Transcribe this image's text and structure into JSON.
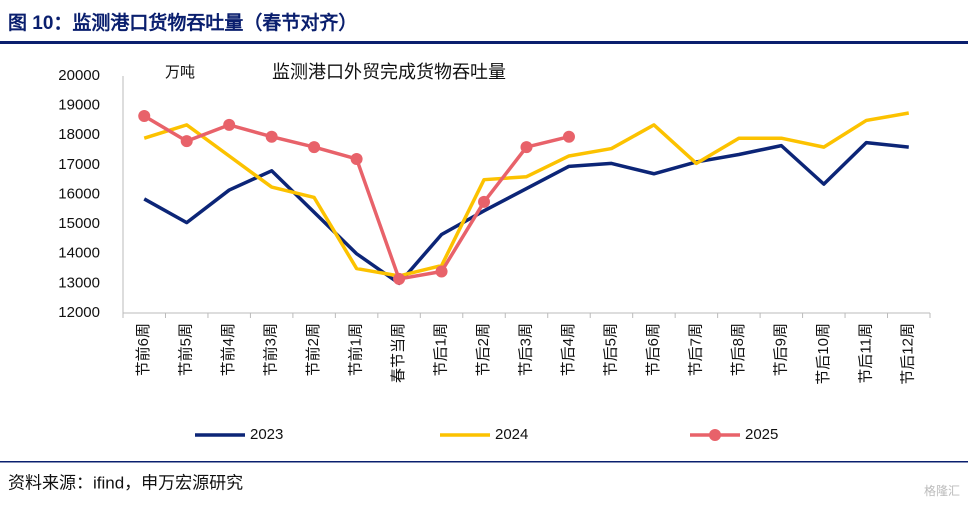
{
  "header": {
    "title": "图 10：监测港口货物吞吐量（春节对齐）"
  },
  "chart_data": {
    "type": "line",
    "title": "监测港口外贸完成货物吞吐量",
    "y_unit": "万吨",
    "categories": [
      "节前6周",
      "节前5周",
      "节前4周",
      "节前3周",
      "节前2周",
      "节前1周",
      "春节当周",
      "节后1周",
      "节后2周",
      "节后3周",
      "节后4周",
      "节后5周",
      "节后6周",
      "节后7周",
      "节后8周",
      "节后9周",
      "节后10周",
      "节后11周",
      "节后12周"
    ],
    "series": [
      {
        "name": "2023",
        "color": "#0c2577",
        "markers": false,
        "values": [
          15850,
          15050,
          16150,
          16800,
          15400,
          14000,
          13000,
          14650,
          15450,
          16200,
          16950,
          17050,
          16700,
          17100,
          17350,
          17650,
          16350,
          17750,
          17600
        ]
      },
      {
        "name": "2024",
        "color": "#fcc200",
        "markers": false,
        "values": [
          17900,
          18350,
          17300,
          16250,
          15900,
          13500,
          13250,
          13600,
          16500,
          16600,
          17300,
          17550,
          18350,
          17050,
          17900,
          17900,
          17600,
          18500,
          18750
        ]
      },
      {
        "name": "2025",
        "color": "#e8626a",
        "markers": true,
        "values": [
          18650,
          17800,
          18350,
          17950,
          17600,
          17200,
          13150,
          13400,
          15750,
          17600,
          17950,
          null,
          null,
          null,
          null,
          null,
          null,
          null,
          null
        ]
      }
    ],
    "ylim": [
      12000,
      20000
    ],
    "yticks": [
      12000,
      13000,
      14000,
      15000,
      16000,
      17000,
      18000,
      19000,
      20000
    ],
    "grid": false,
    "legend": "bottom"
  },
  "footer": {
    "source": "资料来源：ifind，申万宏源研究",
    "watermark": "格隆汇"
  }
}
